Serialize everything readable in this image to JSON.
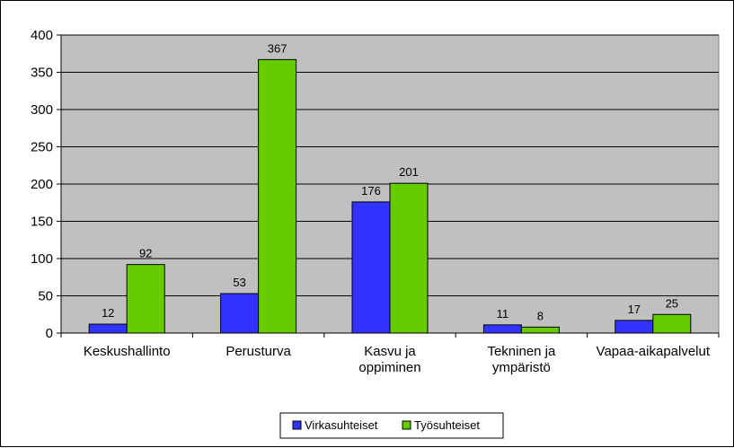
{
  "chart_data": {
    "type": "bar",
    "categories": [
      [
        "Keskushallinto"
      ],
      [
        "Perusturva"
      ],
      [
        "Kasvu ja",
        "oppiminen"
      ],
      [
        "Tekninen ja",
        "ympäristö"
      ],
      [
        "Vapaa-aikapalvelut"
      ]
    ],
    "series": [
      {
        "name": "Virkasuhteiset",
        "color": "#3333ff",
        "values": [
          12,
          53,
          176,
          11,
          17
        ]
      },
      {
        "name": "Työsuhteiset",
        "color": "#66cc00",
        "values": [
          92,
          367,
          201,
          8,
          25
        ]
      }
    ],
    "ylim": [
      0,
      400
    ],
    "yticks": [
      0,
      50,
      100,
      150,
      200,
      250,
      300,
      350,
      400
    ],
    "grid": true,
    "plot_background": "#c0c0c0",
    "legend_position": "bottom"
  }
}
